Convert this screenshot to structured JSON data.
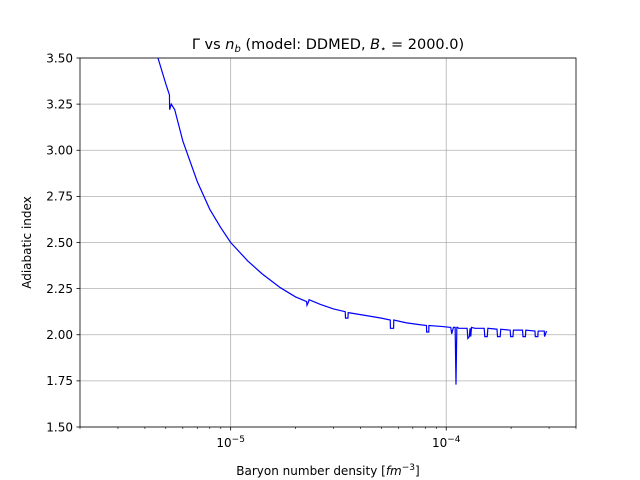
{
  "chart_data": {
    "type": "line",
    "title_parts": {
      "gamma": "Γ",
      "vs": " vs ",
      "n": "n",
      "b": "b",
      "model_prefix": " (model: DDMED, ",
      "bstar_b": "B",
      "bstar_star": "⋆",
      "bstar_value": " = 2000.0)"
    },
    "xlabel_parts": {
      "prefix": "Baryon number density [",
      "fm": "fm",
      "exp": "−3",
      "suffix": "]"
    },
    "ylabel": "Adiabatic index",
    "x_scale": "log",
    "xlim": [
      2e-06,
      0.0004
    ],
    "ylim": [
      1.5,
      3.5
    ],
    "y_ticks": [
      1.5,
      1.75,
      2.0,
      2.25,
      2.5,
      2.75,
      3.0,
      3.25,
      3.5
    ],
    "y_tick_labels": [
      "1.50",
      "1.75",
      "2.00",
      "2.25",
      "2.50",
      "2.75",
      "3.00",
      "3.25",
      "3.50"
    ],
    "x_major_ticks": [
      1e-05,
      0.0001
    ],
    "x_tick_labels": [
      {
        "base": "10",
        "exp": "−5"
      },
      {
        "base": "10",
        "exp": "−4"
      }
    ],
    "grid": true,
    "line_color": "#0000ff",
    "series": [
      {
        "x": [
          4.6e-06,
          5e-06,
          5.2e-06,
          5.21e-06,
          5.3e-06,
          5.5e-06,
          6e-06,
          7e-06,
          8e-06,
          9e-06,
          1e-05,
          1.2e-05,
          1.4e-05,
          1.7e-05,
          2e-05,
          2.25e-05,
          2.26e-05,
          2.3e-05,
          2.31e-05,
          2.6e-05,
          3e-05,
          3.4e-05,
          3.41e-05,
          3.5e-05,
          3.51e-05,
          4.2e-05,
          5e-05,
          5.5e-05,
          5.51e-05,
          5.7e-05,
          5.71e-05,
          6.5e-05,
          7.5e-05,
          8.1e-05,
          8.11e-05,
          8.3e-05,
          8.31e-05,
          9.5e-05,
          0.000105,
          0.000106,
          0.000108,
          0.00011,
          0.000111,
          0.000112,
          0.000113,
          0.000114,
          0.000115,
          0.00012,
          0.000125,
          0.000126,
          0.000128,
          0.000129,
          0.00013,
          0.000131,
          0.000136,
          0.00015,
          0.000151,
          0.000155,
          0.000156,
          0.000172,
          0.000173,
          0.000178,
          0.000179,
          0.000198,
          0.000199,
          0.000204,
          0.000205,
          0.000226,
          0.000227,
          0.000233,
          0.000234,
          0.000258,
          0.000259,
          0.000266,
          0.000267,
          0.000285,
          0.000286,
          0.000292
        ],
        "y": [
          3.5,
          3.36,
          3.3,
          3.22,
          3.25,
          3.22,
          3.05,
          2.83,
          2.68,
          2.58,
          2.5,
          2.4,
          2.33,
          2.255,
          2.205,
          2.18,
          2.16,
          2.18,
          2.19,
          2.165,
          2.14,
          2.125,
          2.09,
          2.09,
          2.12,
          2.105,
          2.09,
          2.08,
          2.035,
          2.035,
          2.08,
          2.065,
          2.055,
          2.05,
          2.015,
          2.015,
          2.05,
          2.045,
          2.04,
          2.005,
          2.04,
          2.04,
          1.73,
          2.04,
          2.04,
          2.035,
          2.035,
          2.035,
          2.035,
          1.98,
          1.99,
          2.035,
          1.99,
          2.04,
          2.035,
          2.035,
          1.99,
          1.99,
          2.035,
          2.03,
          1.99,
          1.99,
          2.03,
          2.025,
          1.99,
          1.99,
          2.025,
          2.025,
          1.99,
          1.99,
          2.025,
          2.02,
          1.99,
          1.99,
          2.02,
          2.02,
          1.99,
          2.02
        ]
      }
    ]
  }
}
